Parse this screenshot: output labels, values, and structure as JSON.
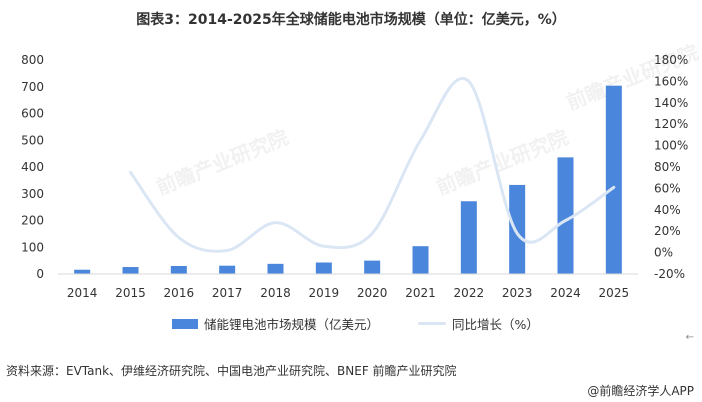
{
  "title": "图表3：2014-2025年全球储能电池市场规模（单位：亿美元，%）",
  "source": "资料来源：EVTank、伊维经济研究院、中国电池产业研究院、BNEF  前瞻产业研究院",
  "brand": "@前瞻经济学人APP",
  "watermark": "前瞻产业研究院",
  "colors": {
    "bar": "#4A86DB",
    "line": "#DBE6F5",
    "axis_text": "#333333",
    "axis_line": "#d9d9d9"
  },
  "chart_data": {
    "type": "bar",
    "categories": [
      "2014",
      "2015",
      "2016",
      "2017",
      "2018",
      "2019",
      "2020",
      "2021",
      "2022",
      "2023",
      "2024",
      "2025"
    ],
    "series": [
      {
        "name": "储能锂电池市场规模（亿美元）",
        "type": "bar",
        "axis": "left",
        "values": [
          16,
          26,
          30,
          31,
          38,
          43,
          50,
          104,
          272,
          333,
          436,
          704
        ]
      },
      {
        "name": "同比增长（%）",
        "type": "line",
        "axis": "right",
        "values": [
          null,
          75,
          14,
          2,
          28,
          6,
          18,
          105,
          160,
          18,
          30,
          61
        ]
      }
    ],
    "ylim_left": [
      0,
      800
    ],
    "left_ticks": [
      "0",
      "100",
      "200",
      "300",
      "400",
      "500",
      "600",
      "700",
      "800"
    ],
    "ylim_right": [
      -20,
      180
    ],
    "right_ticks": [
      "-20%",
      "0%",
      "20%",
      "40%",
      "60%",
      "80%",
      "100%",
      "120%",
      "140%",
      "160%",
      "180%"
    ],
    "legend_position": "bottom",
    "grid": false
  }
}
